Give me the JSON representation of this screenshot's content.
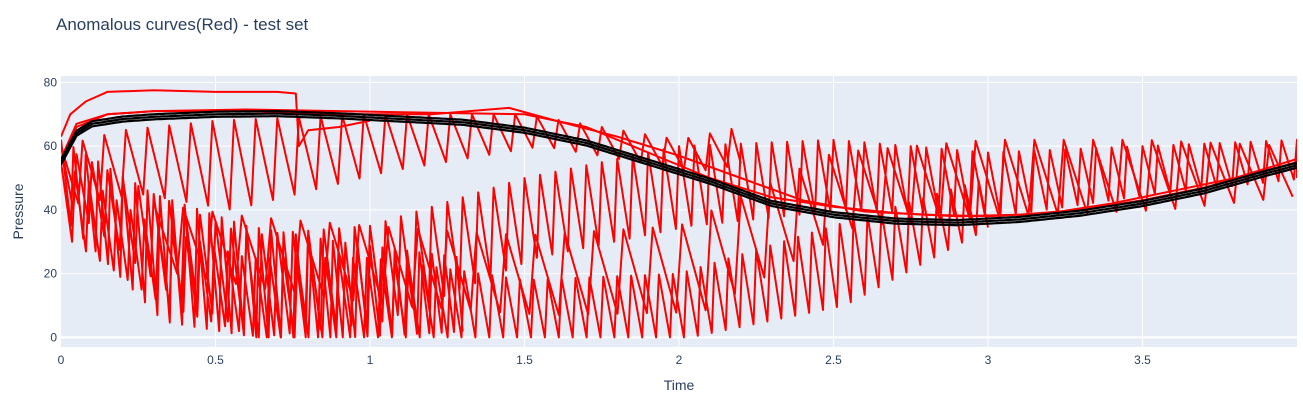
{
  "chart_data": {
    "type": "line",
    "title": "Anomalous curves(Red) - test set",
    "xlabel": "Time",
    "ylabel": "Pressure",
    "xlim": [
      0,
      4.0
    ],
    "ylim": [
      -3,
      82
    ],
    "x_ticks": [
      0,
      0.5,
      1,
      1.5,
      2,
      2.5,
      3,
      3.5
    ],
    "x_tick_labels": [
      "0",
      "0.5",
      "1",
      "1.5",
      "2",
      "2.5",
      "3",
      "3.5"
    ],
    "y_ticks": [
      0,
      20,
      40,
      60,
      80
    ],
    "y_tick_labels": [
      "0",
      "20",
      "40",
      "60",
      "80"
    ],
    "grid": true,
    "colors": {
      "normal": "#000000",
      "anomalous": "#ff0000",
      "plot_bg": "#e5ecf6",
      "grid": "#ffffff",
      "text": "#2a3f5f"
    },
    "baseline_curve": {
      "x": [
        0,
        0.05,
        0.1,
        0.2,
        0.3,
        0.5,
        0.7,
        0.9,
        1.1,
        1.3,
        1.5,
        1.7,
        1.9,
        2.1,
        2.3,
        2.5,
        2.7,
        2.9,
        3.1,
        3.3,
        3.5,
        3.7,
        3.9,
        4.0
      ],
      "y": [
        55,
        64,
        67,
        68.5,
        69.2,
        70,
        70.2,
        69.5,
        68.5,
        67.5,
        65,
        61,
        55,
        49,
        42,
        38.5,
        36.5,
        36,
        37,
        39,
        42,
        46,
        51.5,
        54
      ]
    },
    "series": [
      {
        "color": "anomalous",
        "values": {
          "x": [
            0,
            0.03,
            0.08,
            0.15,
            0.3,
            0.5,
            0.7,
            0.76,
            0.77,
            0.8,
            0.9,
            1.0
          ],
          "y": [
            63,
            70,
            74,
            77,
            77.5,
            77,
            77,
            76.5,
            60,
            65,
            66,
            68
          ]
        }
      },
      {
        "color": "anomalous",
        "values": {
          "x": [
            0,
            0.05,
            0.15,
            0.3,
            0.6,
            0.9,
            1.2,
            1.5,
            1.7,
            1.9,
            2.1,
            2.3,
            2.5,
            2.7,
            2.9,
            3.1,
            3.3,
            3.5,
            3.7,
            4.0
          ],
          "y": [
            55,
            66,
            70,
            71,
            71.5,
            71,
            70.5,
            70,
            66,
            58,
            50,
            44,
            41,
            39,
            38,
            38.5,
            40,
            43,
            47,
            55
          ]
        }
      },
      {
        "color": "anomalous",
        "values": {
          "x": [
            0,
            0.05,
            0.15,
            0.3,
            0.6,
            0.9,
            1.2,
            1.45,
            1.6,
            1.8,
            2.0,
            2.2,
            2.4,
            2.6,
            2.8,
            3.0,
            3.2,
            3.4,
            3.6,
            3.8,
            4.0
          ],
          "y": [
            56,
            67,
            70,
            71,
            71,
            70,
            70,
            72,
            68,
            63,
            57,
            50,
            43,
            39.5,
            38.5,
            38,
            39,
            42,
            46,
            50,
            56
          ]
        }
      }
    ],
    "sawtooth_series": [
      {
        "x0": 0.0,
        "x1": 2.2,
        "cycle": 0.07,
        "base": [
          0,
          0.2,
          0.5,
          1.0,
          1.5,
          2.0,
          2.2
        ],
        "low": [
          42,
          45,
          40,
          52,
          60,
          52,
          55
        ],
        "high": [
          60,
          65,
          68,
          70,
          70,
          62,
          66
        ]
      },
      {
        "x0": 0.3,
        "x1": 4.0,
        "cycle": 0.095,
        "base": [
          0.3,
          0.6,
          1.0,
          1.5,
          2.0,
          2.5,
          3.0,
          3.5,
          4.0
        ],
        "low": [
          20,
          15,
          10,
          7,
          8,
          35,
          38,
          40,
          45
        ],
        "high": [
          42,
          38,
          35,
          32,
          35,
          58,
          62,
          62,
          60
        ]
      },
      {
        "x0": 0.0,
        "x1": 4.0,
        "cycle": 0.05,
        "base": [
          0,
          0.3,
          0.6,
          1.0,
          1.5,
          2.0,
          2.5,
          3.0,
          3.5,
          4.0
        ],
        "low": [
          40,
          15,
          0,
          5,
          25,
          35,
          40,
          38,
          45,
          50
        ],
        "high": [
          60,
          45,
          32,
          35,
          50,
          60,
          62,
          58,
          60,
          62
        ]
      },
      {
        "x0": 0.0,
        "x1": 3.0,
        "cycle": 0.045,
        "base": [
          0,
          0.3,
          0.6,
          1.0,
          1.5,
          2.0,
          2.5,
          3.0
        ],
        "low": [
          30,
          10,
          0,
          0,
          0,
          0,
          10,
          36
        ],
        "high": [
          55,
          35,
          25,
          25,
          18,
          20,
          35,
          50
        ]
      },
      {
        "x0": 0.0,
        "x1": 1.3,
        "cycle": 0.04,
        "base": [
          0,
          0.3,
          0.6,
          0.9,
          1.3
        ],
        "low": [
          35,
          5,
          0,
          0,
          2
        ],
        "high": [
          62,
          45,
          35,
          30,
          25
        ]
      }
    ]
  }
}
